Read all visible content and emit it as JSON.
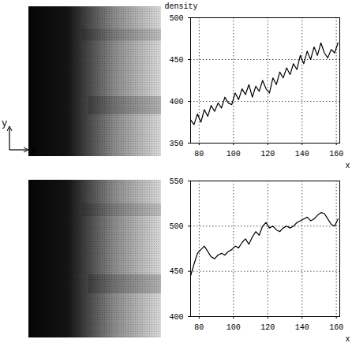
{
  "image_axes": {
    "x": "x",
    "y": "y"
  },
  "chart_data": [
    {
      "type": "line",
      "y_label": "density",
      "x_label": "x",
      "color": "#000000",
      "grid": true,
      "xlim": [
        75,
        162
      ],
      "xticks": [
        80,
        100,
        120,
        140,
        160
      ],
      "ylim": [
        350,
        500
      ],
      "yticks": [
        350,
        400,
        450,
        500
      ],
      "x": [
        75,
        77,
        79,
        81,
        83,
        85,
        87,
        89,
        91,
        93,
        95,
        97,
        99,
        101,
        103,
        105,
        107,
        109,
        111,
        113,
        115,
        117,
        119,
        121,
        123,
        125,
        127,
        129,
        131,
        133,
        135,
        137,
        139,
        141,
        143,
        145,
        147,
        149,
        151,
        153,
        155,
        157,
        159,
        161
      ],
      "values": [
        378,
        372,
        385,
        375,
        390,
        382,
        395,
        388,
        398,
        392,
        405,
        398,
        396,
        410,
        402,
        415,
        408,
        420,
        405,
        418,
        412,
        425,
        415,
        410,
        428,
        420,
        435,
        428,
        440,
        432,
        445,
        438,
        455,
        445,
        460,
        450,
        465,
        455,
        470,
        458,
        452,
        462,
        458,
        470
      ]
    },
    {
      "type": "line",
      "x_label": "x",
      "color": "#000000",
      "grid": true,
      "xlim": [
        75,
        162
      ],
      "xticks": [
        80,
        100,
        120,
        140,
        160
      ],
      "ylim": [
        400,
        550
      ],
      "yticks": [
        400,
        450,
        500,
        550
      ],
      "x": [
        75,
        77,
        79,
        81,
        83,
        85,
        87,
        89,
        91,
        93,
        95,
        97,
        99,
        101,
        103,
        105,
        107,
        109,
        111,
        113,
        115,
        117,
        119,
        121,
        123,
        125,
        127,
        129,
        131,
        133,
        135,
        137,
        139,
        141,
        143,
        145,
        147,
        149,
        151,
        153,
        155,
        157,
        159,
        161
      ],
      "values": [
        445,
        458,
        470,
        474,
        478,
        472,
        466,
        464,
        468,
        470,
        468,
        472,
        474,
        478,
        476,
        482,
        486,
        480,
        488,
        494,
        490,
        500,
        504,
        498,
        500,
        496,
        494,
        498,
        500,
        498,
        500,
        504,
        506,
        508,
        510,
        506,
        508,
        512,
        515,
        514,
        508,
        502,
        500,
        508
      ]
    }
  ]
}
